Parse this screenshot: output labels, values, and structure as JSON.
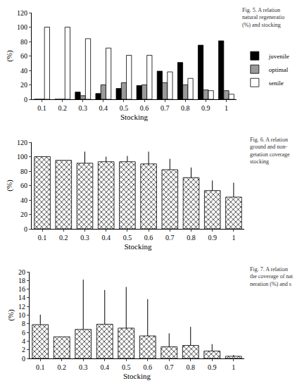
{
  "chart_data": [
    {
      "type": "bar",
      "x_label": "Stocking",
      "y_label": "(%)",
      "caption": [
        "Fig. 5. A relation",
        "natural regeneratio",
        "(%) and stocking"
      ],
      "categories": [
        "0.1",
        "0.2",
        "0.3",
        "0.4",
        "0.5",
        "0.6",
        "0.7",
        "0.8",
        "0.9",
        "1"
      ],
      "series": [
        {
          "name": "juvenile",
          "color": "#000000",
          "values": [
            0,
            0,
            10,
            8,
            15,
            19,
            39,
            51,
            75,
            81
          ]
        },
        {
          "name": "optimal",
          "color": "#999999",
          "values": [
            0,
            0,
            5,
            20,
            23,
            20,
            23,
            20,
            13,
            12
          ]
        },
        {
          "name": "senile",
          "color": "#ffffff",
          "values": [
            100,
            100,
            84,
            71,
            61,
            61,
            38,
            29,
            12,
            7
          ]
        }
      ],
      "ylim": [
        0,
        120
      ],
      "yticks": [
        0,
        20,
        40,
        60,
        80,
        100,
        120
      ],
      "grid": false,
      "legend": "right"
    },
    {
      "type": "bar",
      "x_label": "Stocking",
      "y_label": "(%)",
      "caption": [
        "Fig. 6. A relation",
        "ground and non-",
        "getation coverage",
        "stocking"
      ],
      "categories": [
        "0.1",
        "0.2",
        "0.3",
        "0.4",
        "0.5",
        "0.6",
        "0.7",
        "0.8",
        "0.9",
        "1"
      ],
      "values": [
        100,
        95,
        91,
        93,
        93,
        90,
        82,
        71,
        53,
        44
      ],
      "errors": [
        null,
        null,
        16,
        7,
        8,
        17,
        15,
        14,
        14,
        20
      ],
      "color": "#000000",
      "marker": "crosshatch",
      "ylim": [
        0,
        120
      ],
      "yticks": [
        0,
        20,
        40,
        60,
        80,
        100,
        120
      ],
      "grid": false
    },
    {
      "type": "bar",
      "x_label": "Stocking",
      "y_label": "(%)",
      "caption": [
        "Fig. 7. A relation",
        "the coverage of nat",
        "neration (%) and s"
      ],
      "categories": [
        "0.1",
        "0.2",
        "0.3",
        "0.4",
        "0.5",
        "0.6",
        "0.7",
        "0.8",
        "0.9",
        "1"
      ],
      "values": [
        7.8,
        5,
        6.7,
        7.9,
        7,
        5.2,
        2.7,
        3,
        1.7,
        0.5
      ],
      "errors": [
        2.3,
        null,
        11.5,
        7.9,
        9.5,
        8.5,
        3.1,
        4.3,
        1.6,
        0.3
      ],
      "color": "#000000",
      "marker": "crosshatch",
      "ylim": [
        0,
        20
      ],
      "yticks": [
        0,
        2,
        4,
        6,
        8,
        10,
        12,
        14,
        16,
        18,
        20
      ],
      "grid": false
    }
  ]
}
